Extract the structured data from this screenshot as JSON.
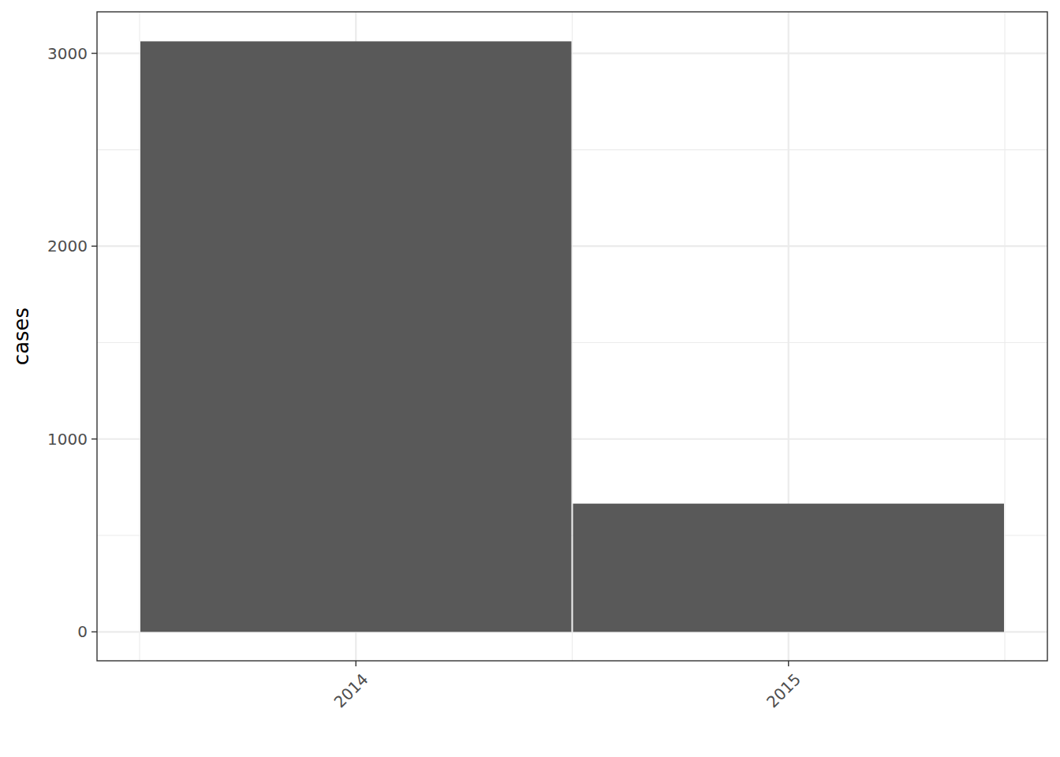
{
  "chart_data": {
    "type": "bar",
    "y_label": "cases",
    "categories": [
      "2014",
      "2015"
    ],
    "values": [
      3062,
      665
    ],
    "color": "#595959",
    "ylim": [
      -150,
      3215
    ],
    "yticks": [
      0,
      1000,
      2000,
      3000
    ],
    "grid": true
  }
}
